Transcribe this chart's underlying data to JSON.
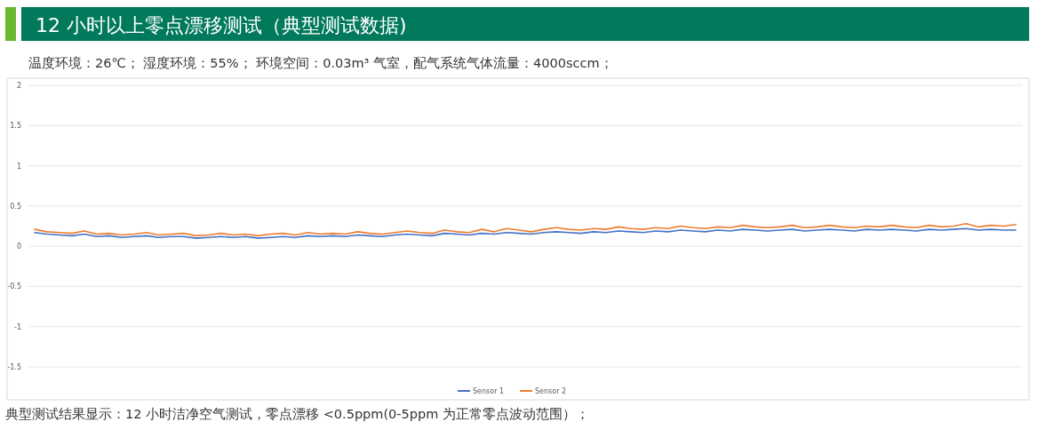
{
  "chart_data": {
    "type": "line",
    "title": "12 小时以上零点漂移测试（典型测试数据)",
    "subtitle": "温度环境：26℃； 湿度环境：55%；  环境空间：0.03m³ 气室，配气系统气体流量：4000sccm；",
    "annotations": [
      "典型测试结果显示：12 小时洁净空气测试，零点漂移 <0.5ppm(0-5ppm 为正常零点波动范围）；"
    ],
    "categories": [
      null,
      null,
      null,
      null,
      null,
      null,
      null,
      null,
      null,
      null,
      null,
      null,
      null,
      null,
      null,
      null,
      null,
      null,
      null,
      null,
      null,
      null,
      null,
      null,
      null,
      null,
      null,
      null,
      null,
      null,
      null,
      null,
      null,
      null,
      null,
      null,
      null,
      null,
      null,
      null,
      null,
      null,
      null,
      null,
      null,
      null,
      null,
      null,
      null,
      null,
      null,
      null,
      null,
      null,
      null,
      null,
      null,
      null,
      null,
      null,
      null,
      null,
      null,
      null,
      null,
      null,
      null,
      null,
      null,
      null,
      null,
      null,
      null,
      null,
      null,
      null,
      null,
      null,
      null,
      null
    ],
    "series": [
      {
        "name": "Sensor 1",
        "color": "#4472c4",
        "values": [
          0.17,
          0.15,
          0.14,
          0.13,
          0.15,
          0.12,
          0.13,
          0.11,
          0.12,
          0.13,
          0.11,
          0.12,
          0.12,
          0.1,
          0.11,
          0.12,
          0.11,
          0.12,
          0.1,
          0.11,
          0.12,
          0.11,
          0.13,
          0.12,
          0.13,
          0.12,
          0.14,
          0.13,
          0.12,
          0.14,
          0.15,
          0.14,
          0.13,
          0.16,
          0.15,
          0.14,
          0.16,
          0.15,
          0.17,
          0.16,
          0.15,
          0.17,
          0.18,
          0.17,
          0.16,
          0.18,
          0.17,
          0.19,
          0.18,
          0.17,
          0.19,
          0.18,
          0.2,
          0.19,
          0.18,
          0.2,
          0.19,
          0.21,
          0.2,
          0.19,
          0.2,
          0.21,
          0.19,
          0.2,
          0.21,
          0.2,
          0.19,
          0.21,
          0.2,
          0.21,
          0.2,
          0.19,
          0.21,
          0.2,
          0.21,
          0.22,
          0.2,
          0.21,
          0.2,
          0.2
        ]
      },
      {
        "name": "Sensor 2",
        "color": "#ed7d31",
        "values": [
          0.21,
          0.18,
          0.17,
          0.16,
          0.19,
          0.15,
          0.16,
          0.14,
          0.15,
          0.17,
          0.14,
          0.15,
          0.16,
          0.13,
          0.14,
          0.16,
          0.14,
          0.15,
          0.13,
          0.15,
          0.16,
          0.14,
          0.17,
          0.15,
          0.16,
          0.15,
          0.18,
          0.16,
          0.15,
          0.17,
          0.19,
          0.17,
          0.16,
          0.2,
          0.18,
          0.17,
          0.21,
          0.18,
          0.22,
          0.2,
          0.18,
          0.21,
          0.23,
          0.21,
          0.2,
          0.22,
          0.21,
          0.24,
          0.22,
          0.21,
          0.23,
          0.22,
          0.25,
          0.23,
          0.22,
          0.24,
          0.23,
          0.26,
          0.24,
          0.23,
          0.24,
          0.26,
          0.23,
          0.24,
          0.26,
          0.24,
          0.23,
          0.25,
          0.24,
          0.26,
          0.24,
          0.23,
          0.26,
          0.24,
          0.25,
          0.28,
          0.24,
          0.26,
          0.25,
          0.27
        ]
      }
    ],
    "ylim": [
      -1.5,
      2
    ],
    "yticks": [
      -1.5,
      -1,
      -0.5,
      0,
      0.5,
      1,
      1.5,
      2
    ],
    "grid": "y",
    "legend": "bottom",
    "tick_labels": "y"
  }
}
